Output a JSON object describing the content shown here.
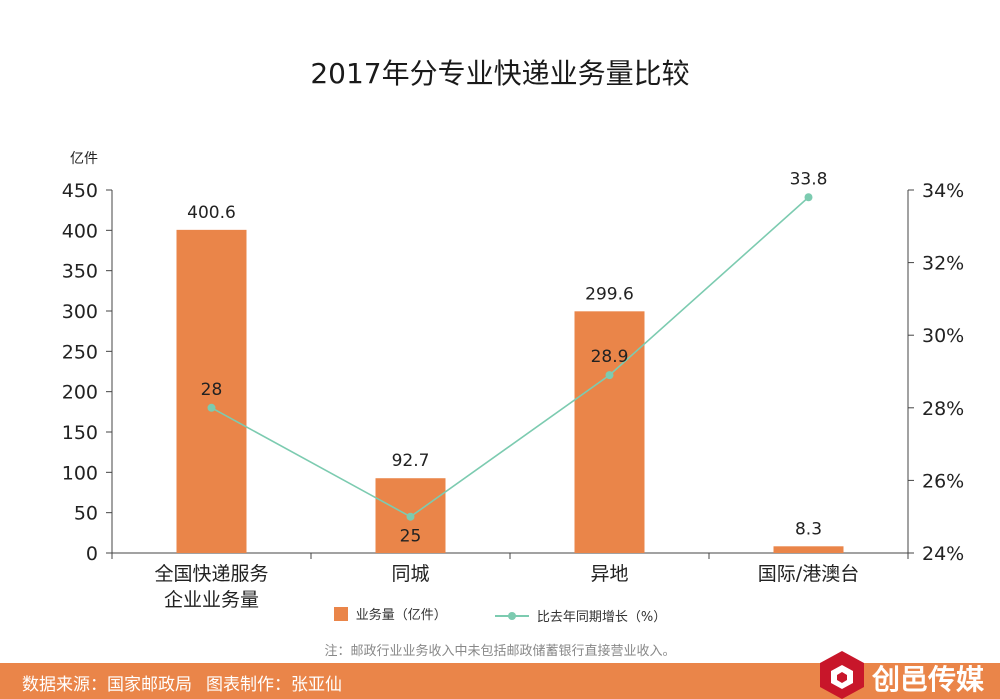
{
  "colors": {
    "bar": "#ea8549",
    "line": "#7ccbb0",
    "footer": "#ea8549",
    "axis": "#444444"
  },
  "footer": {
    "source": "数据来源：国家邮政局",
    "author": "图表制作：张亚仙",
    "logo_text": "创邑传媒"
  },
  "note": "注：邮政行业业务收入中未包括邮政储蓄银行直接营业收入。",
  "chart_data": {
    "type": "bar",
    "title": "2017年分专业快递业务量比较",
    "categories": [
      "全国快递服务企业业务量",
      "同城",
      "异地",
      "国际/港澳台"
    ],
    "category_lines": [
      [
        "全国快递服务",
        "企业业务量"
      ],
      [
        "同城"
      ],
      [
        "异地"
      ],
      [
        "国际/港澳台"
      ]
    ],
    "y_unit": "亿件",
    "ylim": [
      0,
      450
    ],
    "yticks": [
      0,
      50,
      100,
      150,
      200,
      250,
      300,
      350,
      400,
      450
    ],
    "y2lim": [
      24,
      34
    ],
    "y2ticks": [
      "24%",
      "26%",
      "28%",
      "30%",
      "32%",
      "34%"
    ],
    "y2tick_values": [
      24,
      26,
      28,
      30,
      32,
      34
    ],
    "series": [
      {
        "name": "业务量（亿件）",
        "type": "bar",
        "values": [
          400.6,
          92.7,
          299.6,
          8.3
        ],
        "labels": [
          "400.6",
          "92.7",
          "299.6",
          "8.3"
        ]
      },
      {
        "name": "比去年同期增长（%）",
        "type": "line",
        "axis": "right",
        "values": [
          28,
          25,
          28.9,
          33.8
        ],
        "labels": [
          "28",
          "25",
          "28.9",
          "33.8"
        ]
      }
    ],
    "legend_position": "bottom",
    "grid": false
  }
}
